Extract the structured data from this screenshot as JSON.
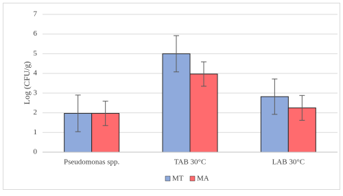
{
  "chart_data": {
    "type": "bar",
    "y_label": "Log (CFU/g)",
    "categories": [
      "Pseudomonas spp.",
      "TAB 30°C",
      "LAB 30°C"
    ],
    "series": [
      {
        "name": "MT",
        "color": "#8faadc",
        "values": [
          1.97,
          5.0,
          2.82
        ],
        "errors": [
          0.93,
          0.92,
          0.9
        ]
      },
      {
        "name": "MA",
        "color": "#ff6b6e",
        "values": [
          1.97,
          3.97,
          2.25
        ],
        "errors": [
          0.62,
          0.62,
          0.63
        ]
      }
    ],
    "ylim": [
      0,
      7
    ],
    "yticks": [
      0,
      1,
      2,
      3,
      4,
      5,
      6,
      7
    ],
    "grid": true,
    "legend": "bottom"
  }
}
